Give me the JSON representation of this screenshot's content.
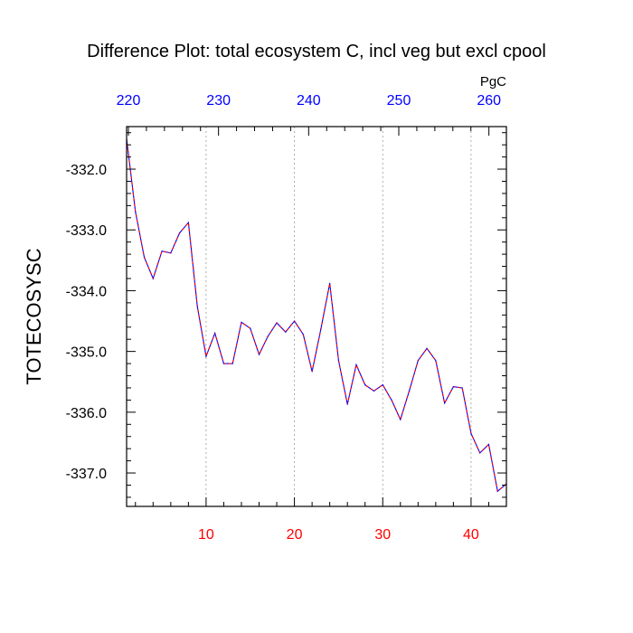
{
  "chart_data": {
    "type": "line",
    "title": "Difference Plot: total ecosystem C, incl veg but excl cpool",
    "ylabel": "TOTECOSYSC",
    "units": "PgC",
    "xlim": [
      1,
      44
    ],
    "ylim": [
      -337.55,
      -331.3
    ],
    "bottom_axis": {
      "ticks": [
        10,
        20,
        30,
        40
      ],
      "tick_labels": [
        "10",
        "20",
        "30",
        "40"
      ],
      "color": "#ff0000"
    },
    "top_axis": {
      "ticks": [
        220,
        230,
        240,
        250,
        260
      ],
      "tick_labels": [
        "220",
        "230",
        "240",
        "250",
        "260"
      ],
      "color": "#0000ff",
      "ref_at_x1": 219.8,
      "units_per_x": 0.98
    },
    "y_axis": {
      "ticks": [
        -332.0,
        -333.0,
        -334.0,
        -335.0,
        -336.0,
        -337.0
      ],
      "tick_labels": [
        "-332.0",
        "-333.0",
        "-334.0",
        "-335.0",
        "-336.0",
        "-337.0"
      ]
    },
    "grid": "vertical dotted",
    "series": [
      {
        "colors": [
          "#0000ff",
          "#ff0000"
        ],
        "x": [
          1,
          2,
          3,
          4,
          5,
          6,
          7,
          8,
          9,
          10,
          11,
          12,
          13,
          14,
          15,
          16,
          17,
          18,
          19,
          20,
          21,
          22,
          23,
          24,
          25,
          26,
          27,
          28,
          29,
          30,
          31,
          32,
          33,
          34,
          35,
          36,
          37,
          38,
          39,
          40,
          41,
          42,
          43,
          44
        ],
        "y": [
          -331.5,
          -332.7,
          -333.45,
          -333.8,
          -333.35,
          -333.38,
          -333.05,
          -332.88,
          -334.25,
          -335.08,
          -334.7,
          -335.2,
          -335.2,
          -334.52,
          -334.62,
          -335.05,
          -334.75,
          -334.53,
          -334.68,
          -334.5,
          -334.72,
          -335.33,
          -334.63,
          -333.88,
          -335.15,
          -335.87,
          -335.22,
          -335.55,
          -335.65,
          -335.55,
          -335.8,
          -336.12,
          -335.65,
          -335.15,
          -334.95,
          -335.15,
          -335.85,
          -335.58,
          -335.6,
          -336.35,
          -336.67,
          -336.53,
          -337.3,
          -337.18
        ]
      }
    ]
  }
}
